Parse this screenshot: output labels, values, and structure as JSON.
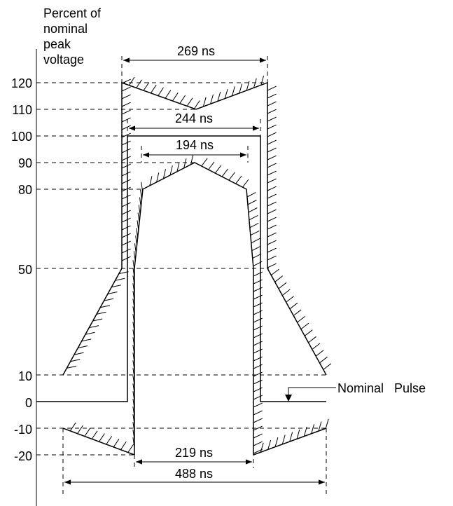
{
  "y_axis": {
    "title_lines": [
      "Percent of",
      "nominal",
      "peak",
      "voltage"
    ],
    "ticks": [
      "120",
      "110",
      "100",
      "90",
      "80",
      "50",
      "10",
      "0",
      "-10",
      "-20"
    ]
  },
  "dimensions": {
    "d269": "269 ns",
    "d244": "244 ns",
    "d194": "194 ns",
    "d219": "219 ns",
    "d488": "488 ns"
  },
  "callout": {
    "label": "Nominal   Pulse"
  }
}
